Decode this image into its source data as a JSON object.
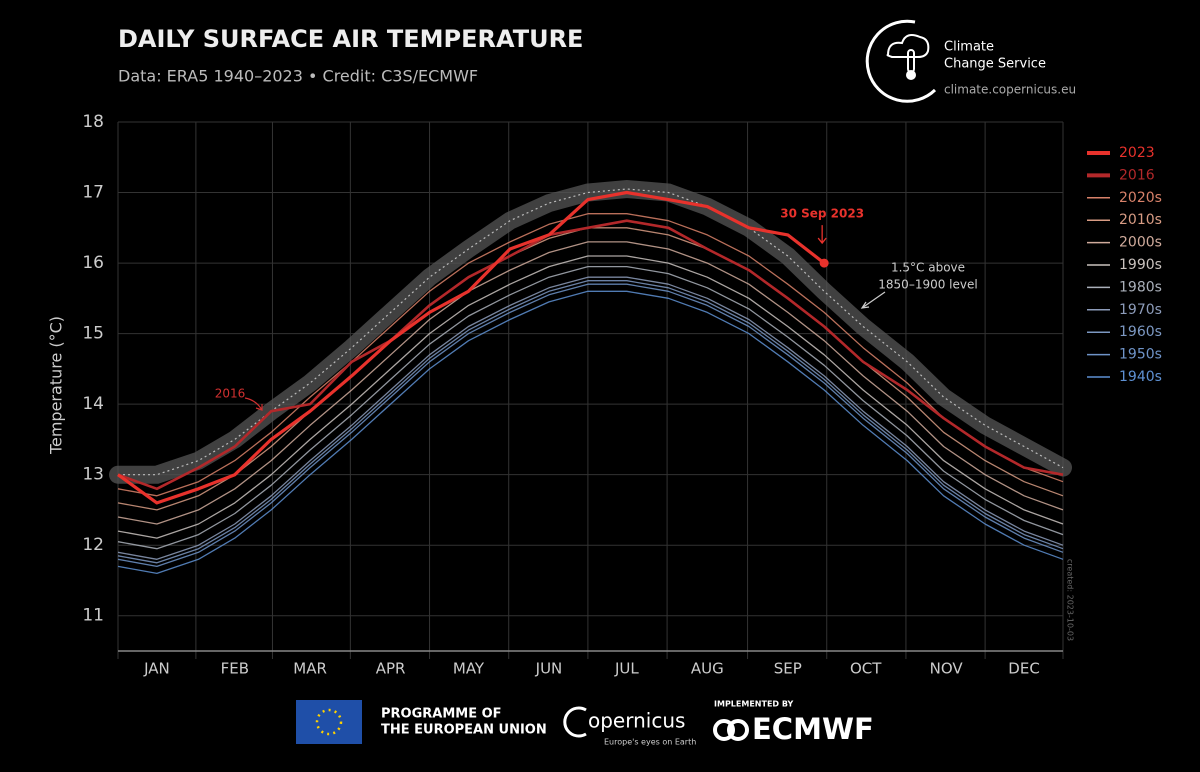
{
  "header": {
    "title": "DAILY SURFACE AIR TEMPERATURE",
    "subtitle": "Data: ERA5 1940–2023 • Credit: C3S/ECMWF",
    "logo_lines": [
      "Climate",
      "Change Service"
    ],
    "url": "climate.copernicus.eu"
  },
  "footer": {
    "eu_lines": [
      "PROGRAMME OF",
      "THE EUROPEAN UNION"
    ],
    "copernicus": "opernicus",
    "copernicus_tagline": "Europe's eyes on Earth",
    "implemented": "IMPLEMENTED BY",
    "ecmwf": "ECMWF"
  },
  "chart_data": {
    "type": "line",
    "y_label": "Temperature (°C)",
    "created": "created: 2023-10-03",
    "x": [
      1,
      16,
      32,
      46,
      60,
      75,
      91,
      106,
      121,
      136,
      152,
      167,
      182,
      197,
      213,
      228,
      244,
      259,
      273,
      288,
      305,
      319,
      335,
      350,
      365
    ],
    "xlim": [
      1,
      365
    ],
    "xticks": [
      {
        "value": 16,
        "label": "JAN"
      },
      {
        "value": 46,
        "label": "FEB"
      },
      {
        "value": 75,
        "label": "MAR"
      },
      {
        "value": 106,
        "label": "APR"
      },
      {
        "value": 136,
        "label": "MAY"
      },
      {
        "value": 167,
        "label": "JUN"
      },
      {
        "value": 197,
        "label": "JUL"
      },
      {
        "value": 228,
        "label": "AUG"
      },
      {
        "value": 259,
        "label": "SEP"
      },
      {
        "value": 289,
        "label": "OCT"
      },
      {
        "value": 320,
        "label": "NOV"
      },
      {
        "value": 350,
        "label": "DEC"
      }
    ],
    "ylim": [
      10.5,
      18
    ],
    "yticks": [
      11,
      12,
      13,
      14,
      15,
      16,
      17,
      18
    ],
    "grid": true,
    "series": [
      {
        "name": "2023",
        "color": "#e8322c",
        "values": [
          13.0,
          12.6,
          12.8,
          13.0,
          13.5,
          13.9,
          14.4,
          14.9,
          15.3,
          15.6,
          16.2,
          16.4,
          16.9,
          17.0,
          16.9,
          16.8,
          16.5,
          16.4,
          16.0,
          null,
          null,
          null,
          null,
          null,
          null
        ]
      },
      {
        "name": "2016",
        "color": "#b3282a",
        "values": [
          13.0,
          12.8,
          13.1,
          13.4,
          13.9,
          14.0,
          14.6,
          14.9,
          15.4,
          15.8,
          16.1,
          16.4,
          16.5,
          16.6,
          16.5,
          16.2,
          15.9,
          15.5,
          15.1,
          14.6,
          14.2,
          13.8,
          13.4,
          13.1,
          13.0
        ]
      },
      {
        "name": "2020s",
        "color": "#d9826a",
        "values": [
          12.8,
          12.7,
          12.9,
          13.2,
          13.6,
          14.1,
          14.6,
          15.1,
          15.6,
          16.0,
          16.3,
          16.55,
          16.7,
          16.7,
          16.6,
          16.4,
          16.1,
          15.7,
          15.3,
          14.8,
          14.3,
          13.8,
          13.4,
          13.1,
          12.9
        ]
      },
      {
        "name": "2010s",
        "color": "#d89c84",
        "values": [
          12.6,
          12.5,
          12.7,
          13.0,
          13.4,
          13.9,
          14.4,
          14.9,
          15.4,
          15.8,
          16.1,
          16.35,
          16.5,
          16.5,
          16.4,
          16.2,
          15.9,
          15.5,
          15.1,
          14.6,
          14.1,
          13.6,
          13.2,
          12.9,
          12.7
        ]
      },
      {
        "name": "2000s",
        "color": "#d0ab9c",
        "values": [
          12.4,
          12.3,
          12.5,
          12.8,
          13.2,
          13.7,
          14.2,
          14.7,
          15.2,
          15.6,
          15.9,
          16.15,
          16.3,
          16.3,
          16.2,
          16.0,
          15.7,
          15.3,
          14.9,
          14.4,
          13.9,
          13.4,
          13.0,
          12.7,
          12.5
        ]
      },
      {
        "name": "1990s",
        "color": "#c9c2be",
        "values": [
          12.2,
          12.1,
          12.3,
          12.6,
          13.0,
          13.5,
          14.0,
          14.5,
          15.0,
          15.4,
          15.7,
          15.95,
          16.1,
          16.1,
          16.0,
          15.8,
          15.5,
          15.1,
          14.7,
          14.2,
          13.7,
          13.2,
          12.8,
          12.5,
          12.3
        ]
      },
      {
        "name": "1980s",
        "color": "#aab0ba",
        "values": [
          12.05,
          11.95,
          12.15,
          12.45,
          12.85,
          13.35,
          13.85,
          14.35,
          14.85,
          15.25,
          15.55,
          15.8,
          15.95,
          15.95,
          15.85,
          15.65,
          15.35,
          14.95,
          14.55,
          14.05,
          13.55,
          13.05,
          12.65,
          12.35,
          12.15
        ]
      },
      {
        "name": "1970s",
        "color": "#8d9cba",
        "values": [
          11.9,
          11.8,
          12.0,
          12.3,
          12.7,
          13.2,
          13.7,
          14.2,
          14.7,
          15.1,
          15.4,
          15.65,
          15.8,
          15.8,
          15.7,
          15.5,
          15.2,
          14.8,
          14.4,
          13.9,
          13.4,
          12.9,
          12.5,
          12.2,
          12.0
        ]
      },
      {
        "name": "1960s",
        "color": "#7c98c2",
        "values": [
          11.85,
          11.75,
          11.95,
          12.25,
          12.65,
          13.15,
          13.65,
          14.15,
          14.65,
          15.05,
          15.35,
          15.6,
          15.75,
          15.75,
          15.65,
          15.45,
          15.15,
          14.75,
          14.35,
          13.85,
          13.35,
          12.85,
          12.45,
          12.15,
          11.95
        ]
      },
      {
        "name": "1950s",
        "color": "#6f94c9",
        "values": [
          11.8,
          11.7,
          11.9,
          12.2,
          12.6,
          13.1,
          13.6,
          14.1,
          14.6,
          15.0,
          15.3,
          15.55,
          15.7,
          15.7,
          15.6,
          15.4,
          15.1,
          14.7,
          14.3,
          13.8,
          13.3,
          12.8,
          12.4,
          12.1,
          11.9
        ]
      },
      {
        "name": "1940s",
        "color": "#5e90d2",
        "values": [
          11.7,
          11.6,
          11.8,
          12.1,
          12.5,
          13.0,
          13.5,
          14.0,
          14.5,
          14.9,
          15.2,
          15.45,
          15.6,
          15.6,
          15.5,
          15.3,
          15.0,
          14.6,
          14.2,
          13.7,
          13.2,
          12.7,
          12.3,
          12.0,
          11.8
        ]
      }
    ],
    "reference": {
      "label_lines": [
        "1.5°C above",
        "1850–1900 level"
      ],
      "color": "#555555",
      "values": [
        13.0,
        13.0,
        13.2,
        13.5,
        13.9,
        14.3,
        14.8,
        15.3,
        15.8,
        16.2,
        16.6,
        16.85,
        17.0,
        17.05,
        17.0,
        16.8,
        16.5,
        16.1,
        15.6,
        15.1,
        14.6,
        14.1,
        13.7,
        13.4,
        13.1
      ]
    },
    "annotations": [
      {
        "text": "30 Sep 2023",
        "color": "#e8322c"
      },
      {
        "text": "2016",
        "color": "#d03030"
      }
    ]
  }
}
